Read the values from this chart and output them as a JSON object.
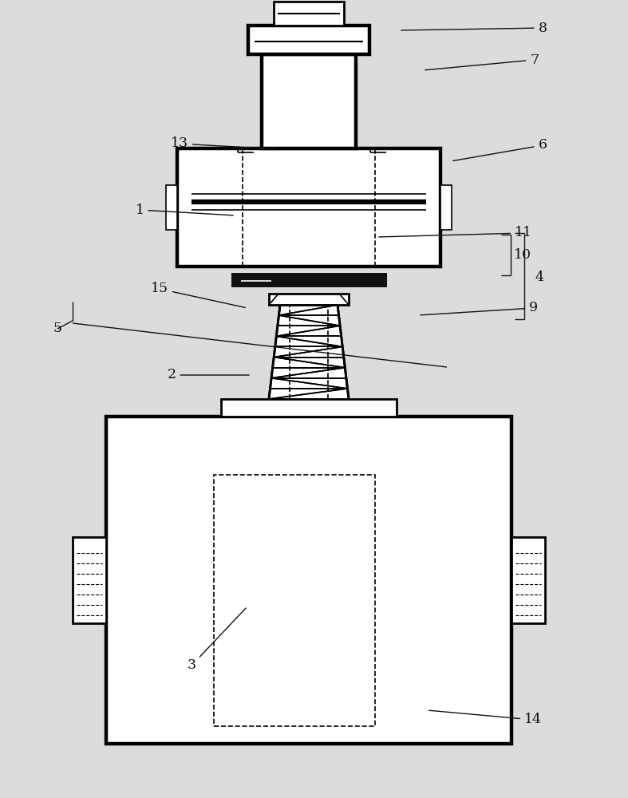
{
  "bg_color": "#dcdcdc",
  "lc": "#000000",
  "white": "#ffffff",
  "dark": "#111111",
  "fig_w": 7.87,
  "fig_h": 10.0,
  "ann_color": "#111111",
  "fs": 12.5
}
